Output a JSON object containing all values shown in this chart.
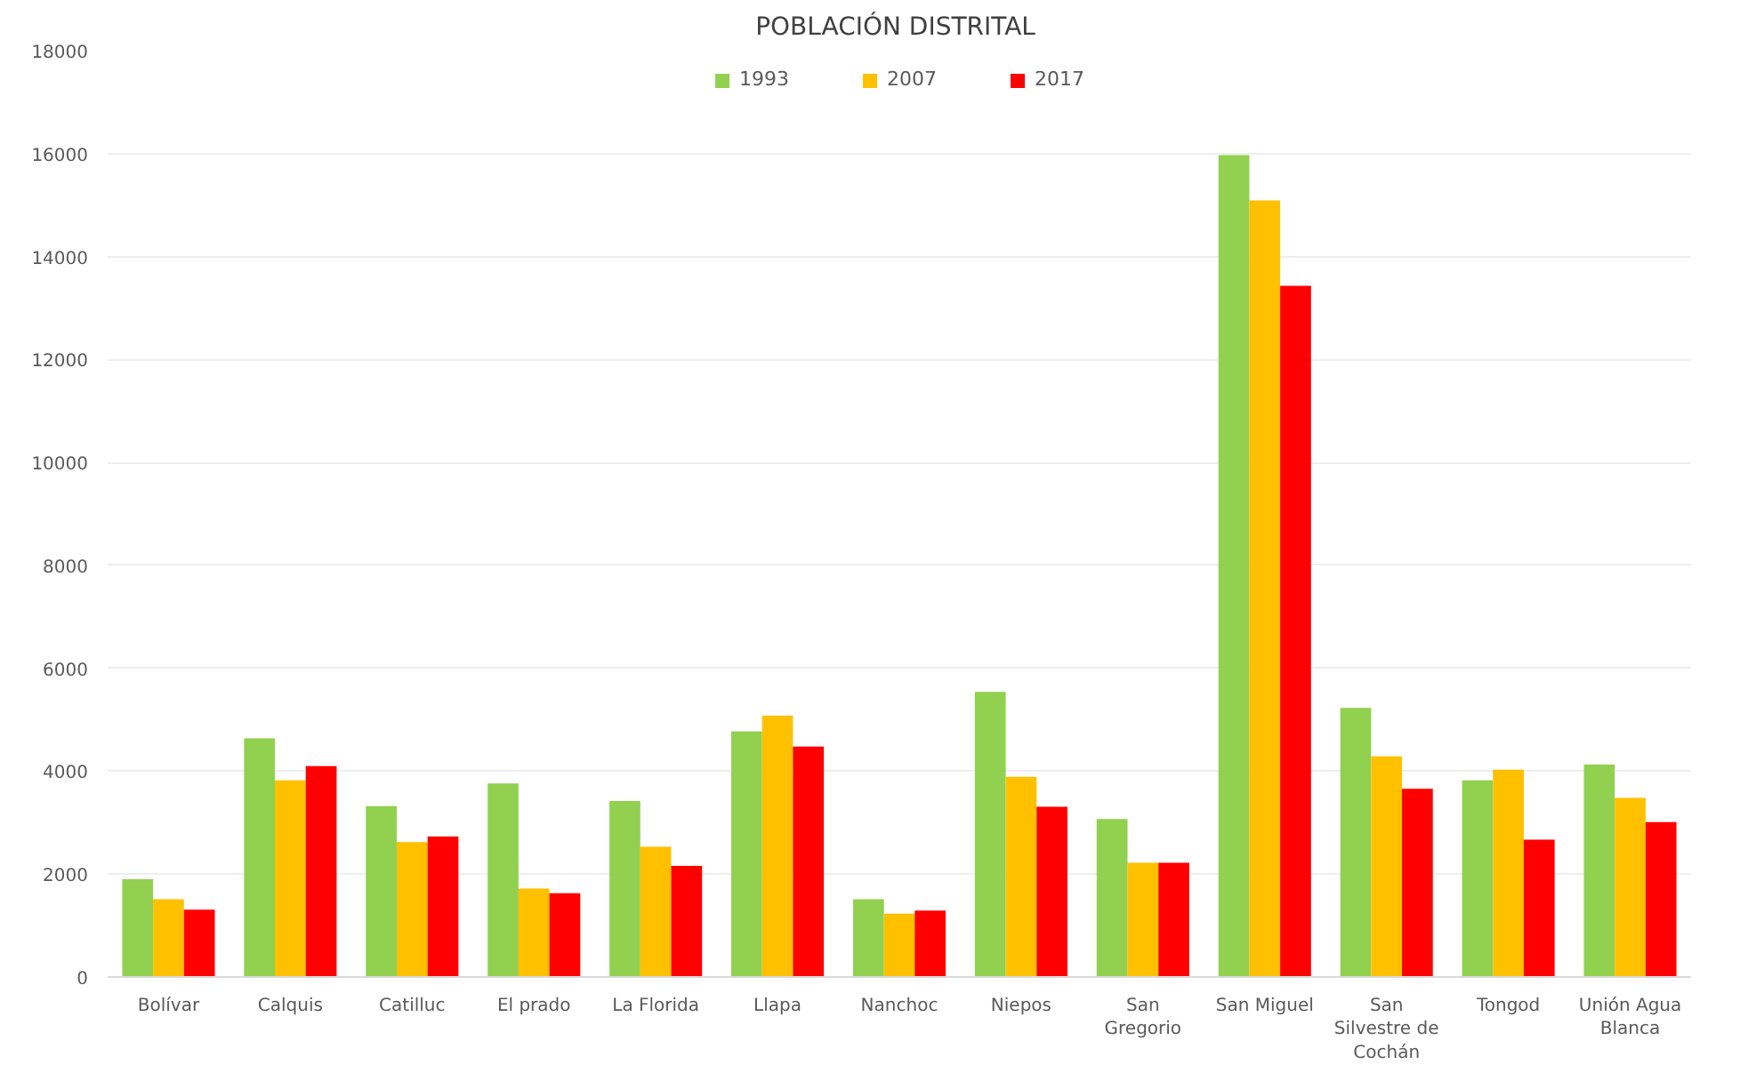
{
  "chart_data": {
    "type": "bar",
    "title": "POBLACIÓN  DISTRITAL",
    "categories": [
      "Bolívar",
      "Calquis",
      "Catilluc",
      "El prado",
      "La Florida",
      "Llapa",
      "Nanchoc",
      "Niepos",
      "San\nGregorio",
      "San Miguel",
      "San\nSilvestre de\nCochán",
      "Tongod",
      "Unión Agua\nBlanca"
    ],
    "series": [
      {
        "name": "1993",
        "color": "#92d050",
        "values": [
          1900,
          4640,
          3320,
          3760,
          3420,
          4770,
          1510,
          5540,
          3070,
          15970,
          5230,
          3820,
          4130
        ]
      },
      {
        "name": "2007",
        "color": "#ffc000",
        "values": [
          1510,
          3820,
          2620,
          1720,
          2530,
          5080,
          1230,
          3890,
          2220,
          15090,
          4290,
          4030,
          3480
        ]
      },
      {
        "name": "2017",
        "color": "#ff0000",
        "values": [
          1310,
          4100,
          2730,
          1630,
          2160,
          4480,
          1290,
          3310,
          2220,
          13430,
          3660,
          2670,
          3010
        ]
      }
    ],
    "ylim": [
      0,
      18000
    ],
    "yticks": [
      0,
      2000,
      4000,
      6000,
      8000,
      10000,
      12000,
      14000,
      16000,
      18000
    ],
    "grid": "y",
    "legend": "top"
  }
}
